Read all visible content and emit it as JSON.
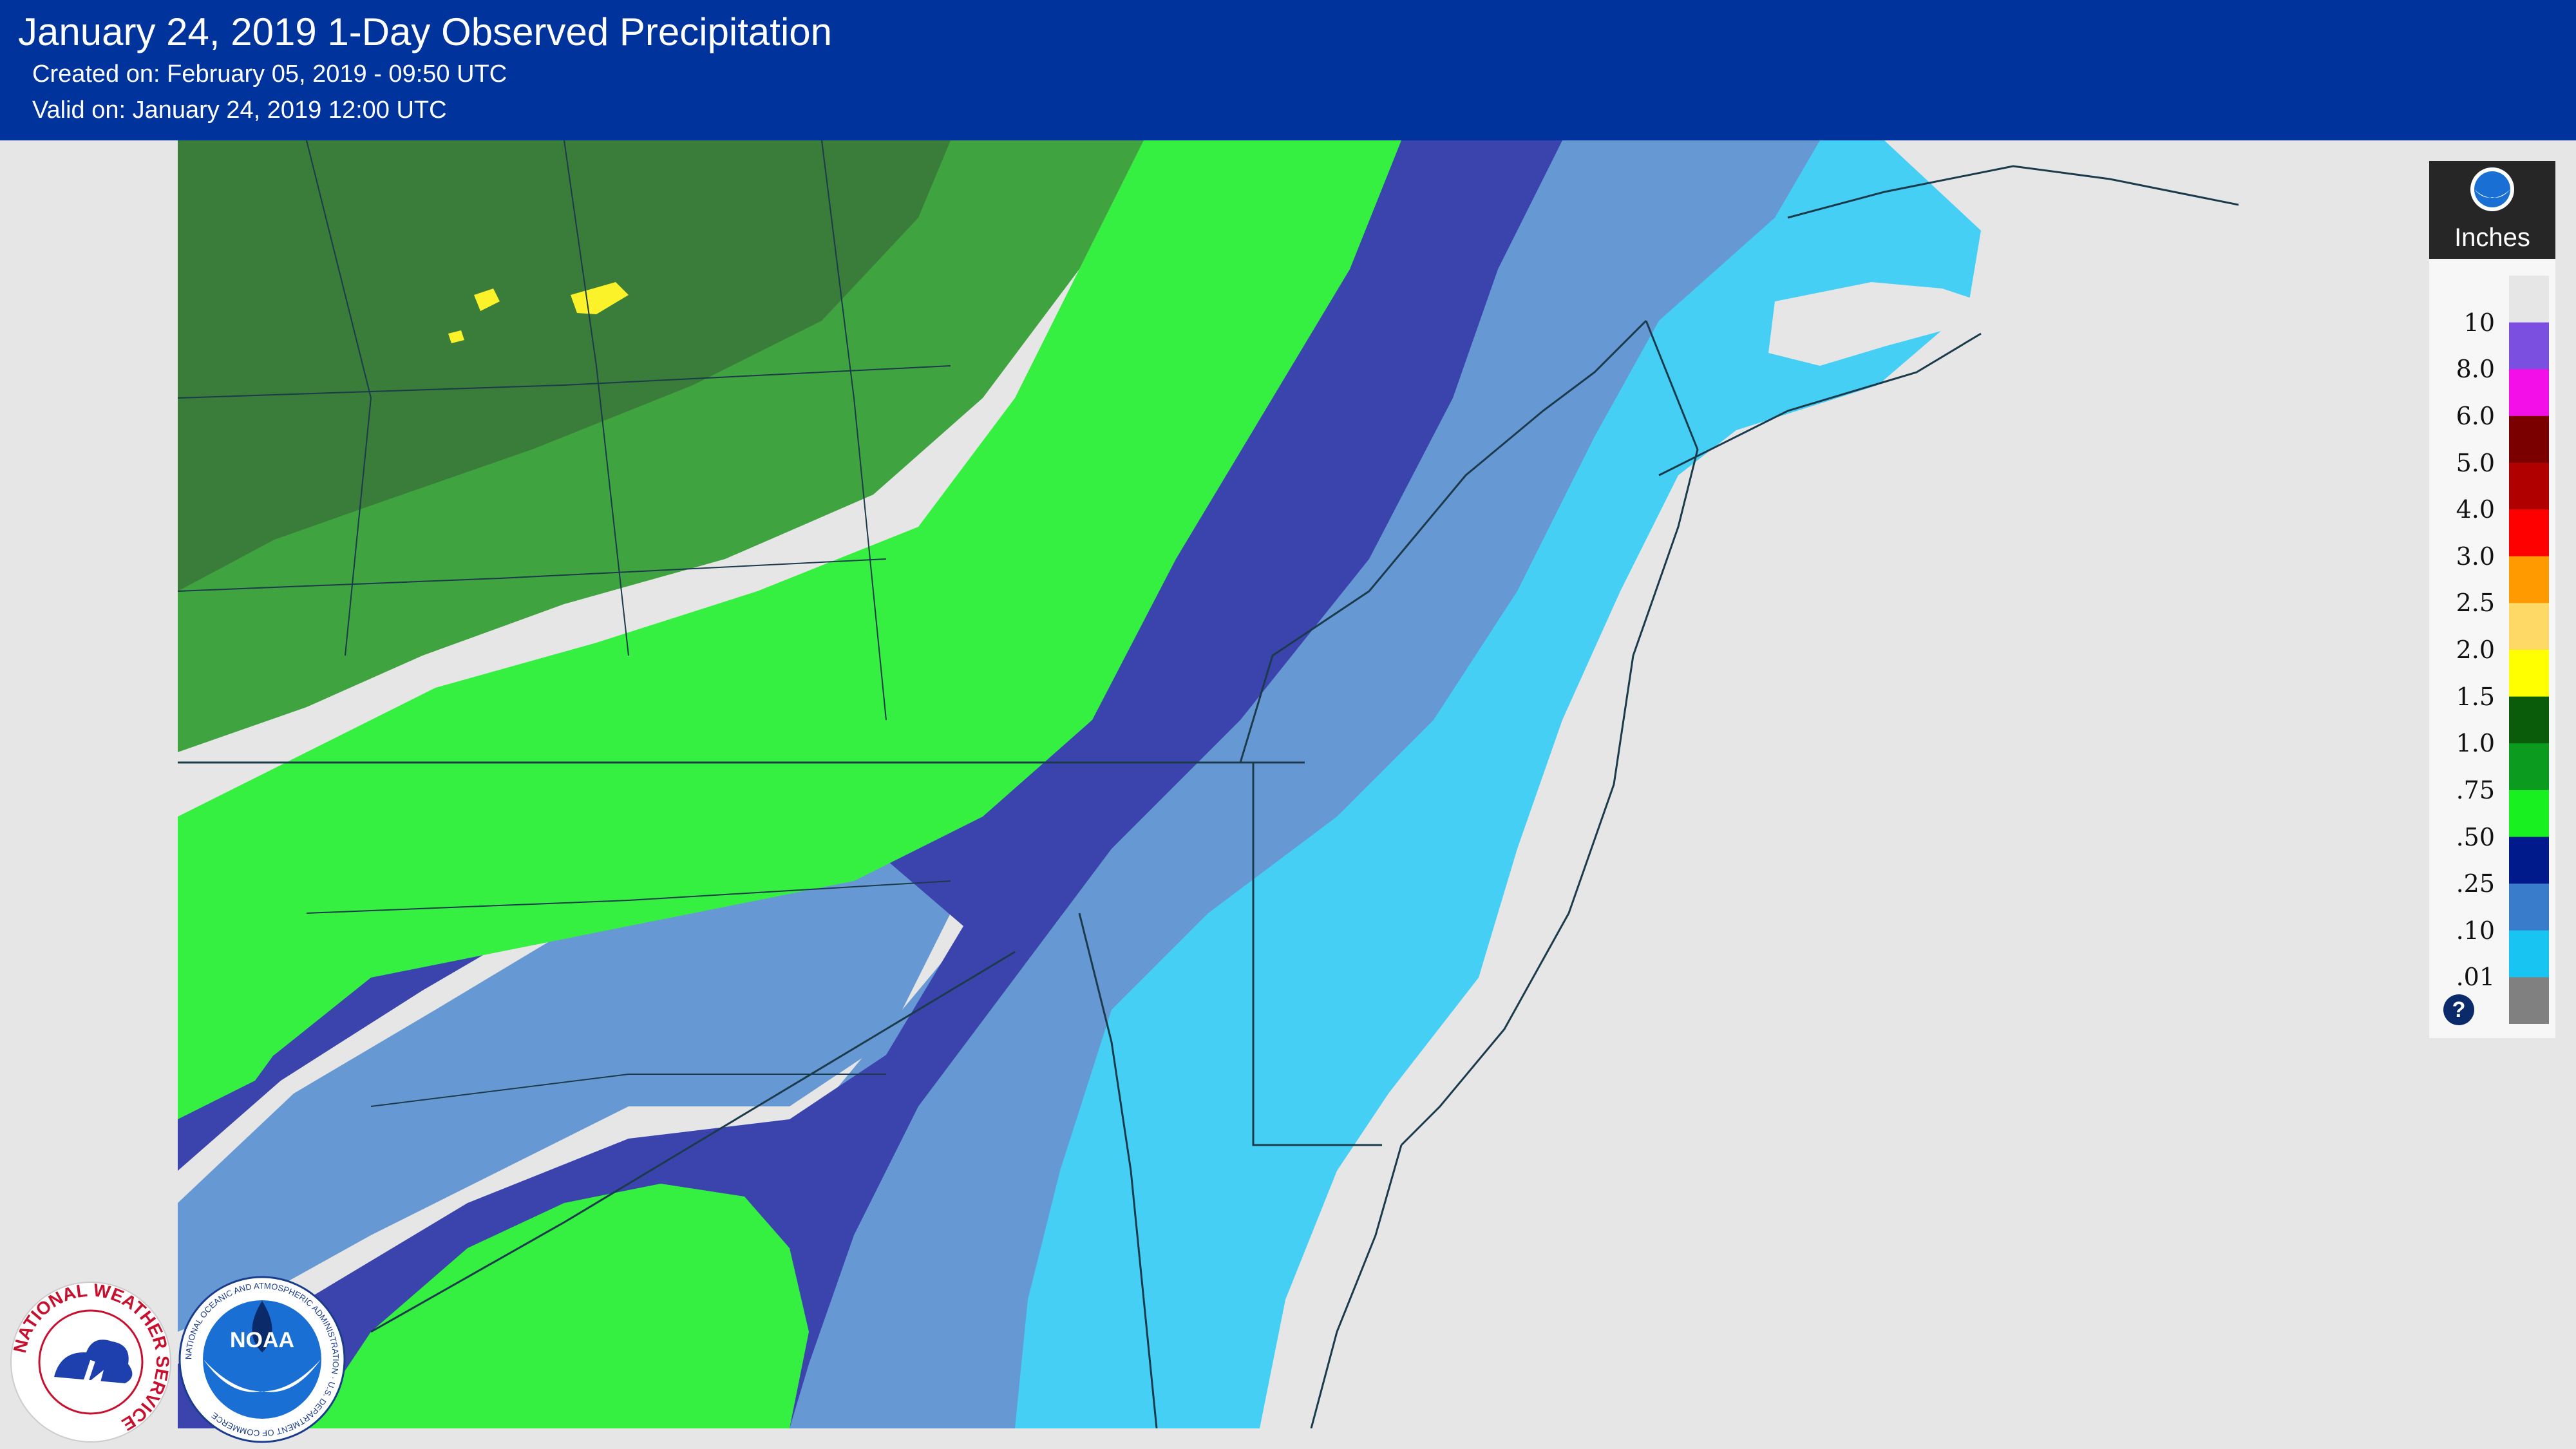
{
  "header": {
    "title": "January 24, 2019 1-Day Observed Precipitation",
    "created": "Created on: February 05, 2019 - 09:50 UTC",
    "valid": "Valid on: January 24, 2019 12:00 UTC"
  },
  "legend": {
    "units": "Inches",
    "help_label": "?",
    "items": [
      {
        "label": "10",
        "color": "#7b4fe0"
      },
      {
        "label": "8.0",
        "color": "#f20fe8"
      },
      {
        "label": "6.0",
        "color": "#7a0000"
      },
      {
        "label": "5.0",
        "color": "#b00000"
      },
      {
        "label": "4.0",
        "color": "#ff0000"
      },
      {
        "label": "3.0",
        "color": "#ff9a00"
      },
      {
        "label": "2.5",
        "color": "#ffd966"
      },
      {
        "label": "2.0",
        "color": "#ffff00"
      },
      {
        "label": "1.5",
        "color": "#0a5c0a"
      },
      {
        "label": "1.0",
        "color": "#0b9b1f"
      },
      {
        "label": ".75",
        "color": "#19f020"
      },
      {
        "label": ".50",
        "color": "#001a8c"
      },
      {
        "label": ".25",
        "color": "#3a7ccc"
      },
      {
        "label": ".10",
        "color": "#18c5f2"
      },
      {
        "label": ".01",
        "color": "#808080"
      }
    ],
    "top_color": "#e6e6e6"
  },
  "map_colors": {
    "ocean": "#e6e6e6",
    "band_150": "#3a7d3a",
    "band_100": "#3fa33f",
    "band_075": "#35f040",
    "band_050": "#3b44ad",
    "band_025": "#6699d3",
    "band_010": "#45cff5",
    "band_001": "#e6e6e6",
    "band_200": "#fbf22a",
    "borders": "#1b3a4b"
  },
  "logos": {
    "nws_text": "NATIONAL WEATHER SERVICE",
    "noaa_text": "NOAA",
    "noaa_ring_text": "NATIONAL OCEANIC AND ATMOSPHERIC ADMINISTRATION · U.S. DEPARTMENT OF COMMERCE"
  }
}
